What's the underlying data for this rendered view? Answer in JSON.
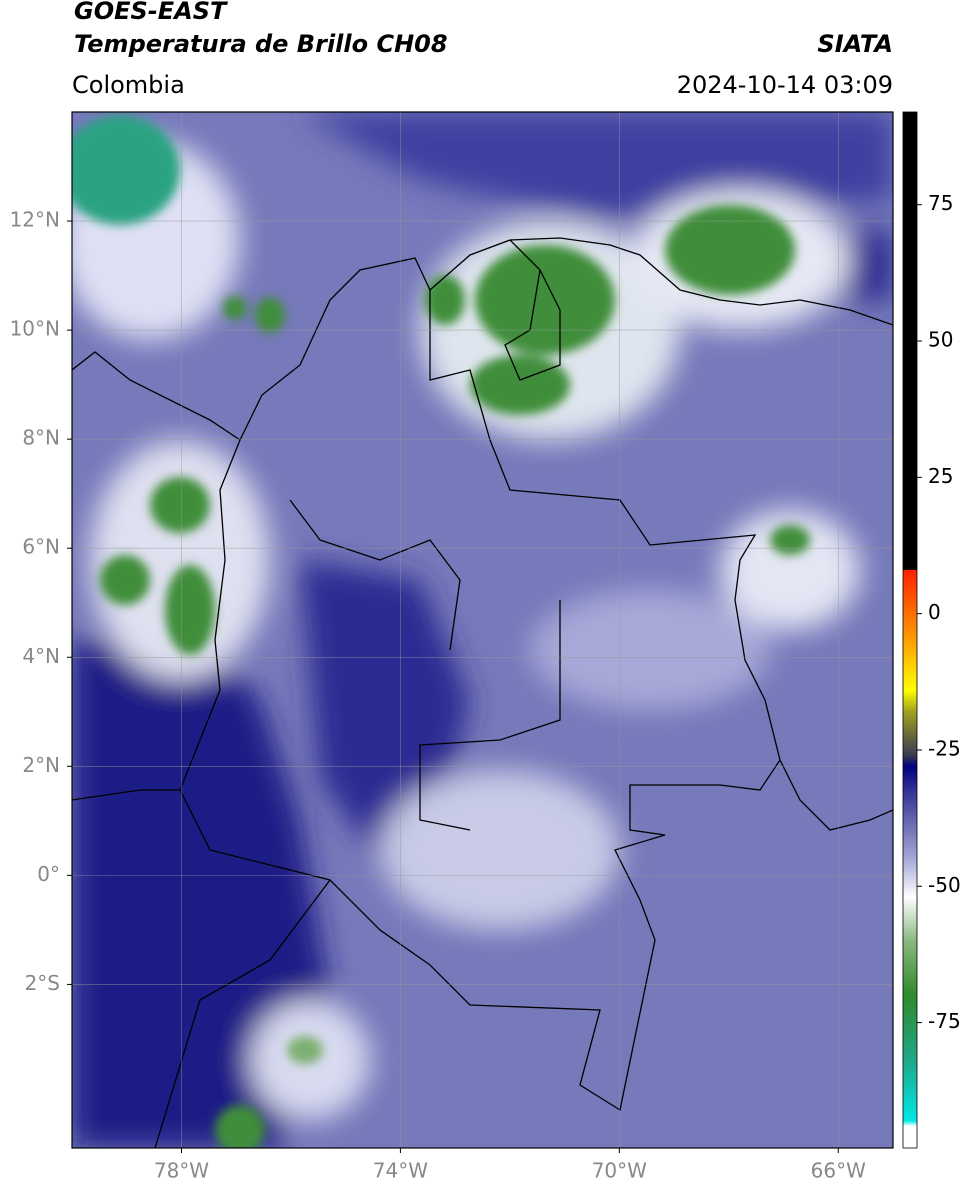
{
  "header": {
    "title": "GOES-EAST",
    "subtitle": "Temperatura de Brillo CH08",
    "source": "SIATA",
    "region": "Colombia",
    "datetime": "2024-10-14 03:09"
  },
  "map": {
    "lon_lim": [
      -80,
      -65
    ],
    "lat_lim": [
      -5,
      14
    ],
    "grid": true,
    "lon_ticks": [
      {
        "value": -78,
        "label": "78°W"
      },
      {
        "value": -74,
        "label": "74°W"
      },
      {
        "value": -70,
        "label": "70°W"
      },
      {
        "value": -66,
        "label": "66°W"
      }
    ],
    "lat_ticks": [
      {
        "value": 12,
        "label": "12°N"
      },
      {
        "value": 10,
        "label": "10°N"
      },
      {
        "value": 8,
        "label": "8°N"
      },
      {
        "value": 6,
        "label": "6°N"
      },
      {
        "value": 4,
        "label": "4°N"
      },
      {
        "value": 2,
        "label": "2°N"
      },
      {
        "value": 0,
        "label": "0°"
      },
      {
        "value": -2,
        "label": "2°S"
      }
    ],
    "colorbar": {
      "lim": [
        -98,
        92
      ],
      "ticks": [
        75,
        50,
        25,
        0,
        -25,
        -50,
        -75
      ],
      "stops": [
        {
          "value": -98,
          "color": "#ffffff"
        },
        {
          "value": -94,
          "color": "#ffffff"
        },
        {
          "value": -93,
          "color": "#00e8e8"
        },
        {
          "value": -82,
          "color": "#1fa88a"
        },
        {
          "value": -70,
          "color": "#2f8a2a"
        },
        {
          "value": -60,
          "color": "#8ab880"
        },
        {
          "value": -52,
          "color": "#ffffff"
        },
        {
          "value": -45,
          "color": "#a6a8d6"
        },
        {
          "value": -32,
          "color": "#2e2e92"
        },
        {
          "value": -28,
          "color": "#000080"
        },
        {
          "value": -26,
          "color": "#3a3a50"
        },
        {
          "value": -18,
          "color": "#a0a020"
        },
        {
          "value": -14,
          "color": "#ffff00"
        },
        {
          "value": -5,
          "color": "#ffa000"
        },
        {
          "value": 8,
          "color": "#ff2000"
        },
        {
          "value": 8.01,
          "color": "#000000"
        },
        {
          "value": 92,
          "color": "#000000"
        }
      ]
    }
  }
}
